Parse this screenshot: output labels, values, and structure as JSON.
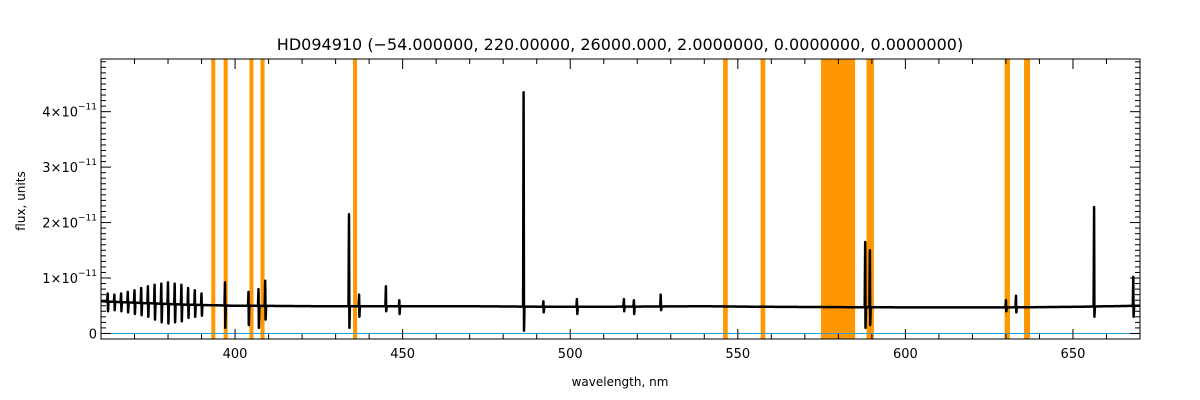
{
  "chart_data": {
    "type": "line",
    "title": "HD094910    (−54.000000, 220.00000, 26000.000, 2.0000000, 0.0000000, 0.0000000)",
    "xlabel": "wavelength, nm",
    "ylabel": "flux, units",
    "xlim": [
      360,
      670
    ],
    "ylim": [
      -1e-12,
      4.95e-11
    ],
    "x_ticks": [
      400,
      450,
      500,
      550,
      600,
      650
    ],
    "x_tick_labels": [
      "400",
      "450",
      "500",
      "550",
      "600",
      "650"
    ],
    "y_ticks": [
      0,
      1e-11,
      2e-11,
      3e-11,
      4e-11
    ],
    "y_tick_labels": [
      {
        "mantissa": "0",
        "exp": ""
      },
      {
        "mantissa": "1×10",
        "exp": "−11"
      },
      {
        "mantissa": "2×10",
        "exp": "−11"
      },
      {
        "mantissa": "3×10",
        "exp": "−11"
      },
      {
        "mantissa": "4×10",
        "exp": "−11"
      }
    ],
    "grid": false,
    "masked_regions": [
      [
        392.9,
        394.1
      ],
      [
        396.6,
        397.8
      ],
      [
        404.3,
        405.5
      ],
      [
        407.6,
        408.8
      ],
      [
        435.2,
        436.4
      ],
      [
        545.6,
        547.0
      ],
      [
        556.8,
        558.2
      ],
      [
        574.8,
        585.0
      ],
      [
        588.4,
        590.6
      ],
      [
        629.6,
        631.2
      ],
      [
        635.4,
        637.2
      ]
    ],
    "series": [
      {
        "role": "flux",
        "continuum": [
          [
            360,
            5.8e-12
          ],
          [
            372,
            5.5e-12
          ],
          [
            385,
            5.2e-12
          ],
          [
            400,
            5e-12
          ],
          [
            430,
            4.9e-12
          ],
          [
            470,
            4.9e-12
          ],
          [
            500,
            4.8e-12
          ],
          [
            540,
            4.9e-12
          ],
          [
            560,
            4.8e-12
          ],
          [
            600,
            4.7e-12
          ],
          [
            630,
            4.7e-12
          ],
          [
            650,
            4.8e-12
          ],
          [
            670,
            5e-12
          ]
        ],
        "spikes": [
          [
            362,
            7.2e-12,
            4e-12
          ],
          [
            364,
            7e-12,
            4.2e-12
          ],
          [
            366,
            7.2e-12,
            4e-12
          ],
          [
            368,
            7.5e-12,
            3.8e-12
          ],
          [
            370,
            7.8e-12,
            3.5e-12
          ],
          [
            372,
            8.2e-12,
            3.3e-12
          ],
          [
            374,
            8.5e-12,
            3e-12
          ],
          [
            376,
            8.8e-12,
            2.5e-12
          ],
          [
            378,
            9e-12,
            2e-12
          ],
          [
            380,
            9.2e-12,
            1.8e-12
          ],
          [
            382,
            9e-12,
            2e-12
          ],
          [
            384,
            8.8e-12,
            2.2e-12
          ],
          [
            386,
            8.2e-12,
            2.8e-12
          ],
          [
            388,
            7.8e-12,
            3e-12
          ],
          [
            390,
            7.2e-12,
            3.2e-12
          ],
          [
            397,
            9.2e-12,
            1e-12
          ],
          [
            404,
            7.5e-12,
            1.5e-12
          ],
          [
            407,
            8e-12,
            1e-12
          ],
          [
            409,
            9.5e-12,
            2.5e-12
          ],
          [
            434,
            2.15e-11,
            1e-12
          ],
          [
            437,
            7e-12,
            3e-12
          ],
          [
            445,
            8.5e-12,
            4e-12
          ],
          [
            449,
            6e-12,
            3.5e-12
          ],
          [
            486.1,
            4.35e-11,
            5e-13
          ],
          [
            492,
            5.8e-12,
            3.8e-12
          ],
          [
            502,
            6.2e-12,
            3.5e-12
          ],
          [
            516,
            6.2e-12,
            4e-12
          ],
          [
            519,
            6e-12,
            3.5e-12
          ],
          [
            527,
            7e-12,
            4.2e-12
          ],
          [
            588.0,
            1.65e-11,
            1e-12
          ],
          [
            589.4,
            1.5e-11,
            1.5e-12
          ],
          [
            630,
            6e-12,
            4e-12
          ],
          [
            633,
            6.8e-12,
            3.8e-12
          ],
          [
            656.3,
            2.28e-11,
            3e-12
          ],
          [
            668,
            1.02e-11,
            3e-12
          ]
        ]
      },
      {
        "role": "zero-baseline",
        "y": 0
      }
    ]
  },
  "colors": {
    "mask": "#ff9800",
    "flux": "#000000",
    "baseline": "#2a9fd6",
    "frame": "#000000"
  }
}
